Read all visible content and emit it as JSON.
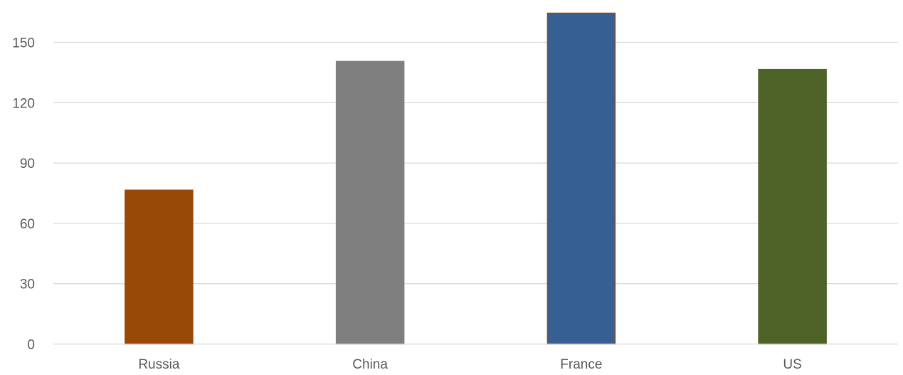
{
  "chart_data": {
    "type": "bar",
    "title": "",
    "xlabel": "",
    "ylabel": "",
    "categories": [
      "Russia",
      "China",
      "France",
      "US"
    ],
    "values": [
      76.5,
      140.5,
      164.5,
      136.5
    ],
    "bar_colors": [
      "#984807",
      "#7f7f7f",
      "#366092",
      "#4f6228"
    ],
    "bar_edge_colors": [
      "#984807",
      "#7f7f7f",
      "#984807",
      "#4f6228"
    ],
    "ylim": [
      0,
      165
    ],
    "yticks": [
      0,
      30,
      60,
      90,
      120,
      150
    ],
    "grid": true,
    "legend": "none"
  }
}
